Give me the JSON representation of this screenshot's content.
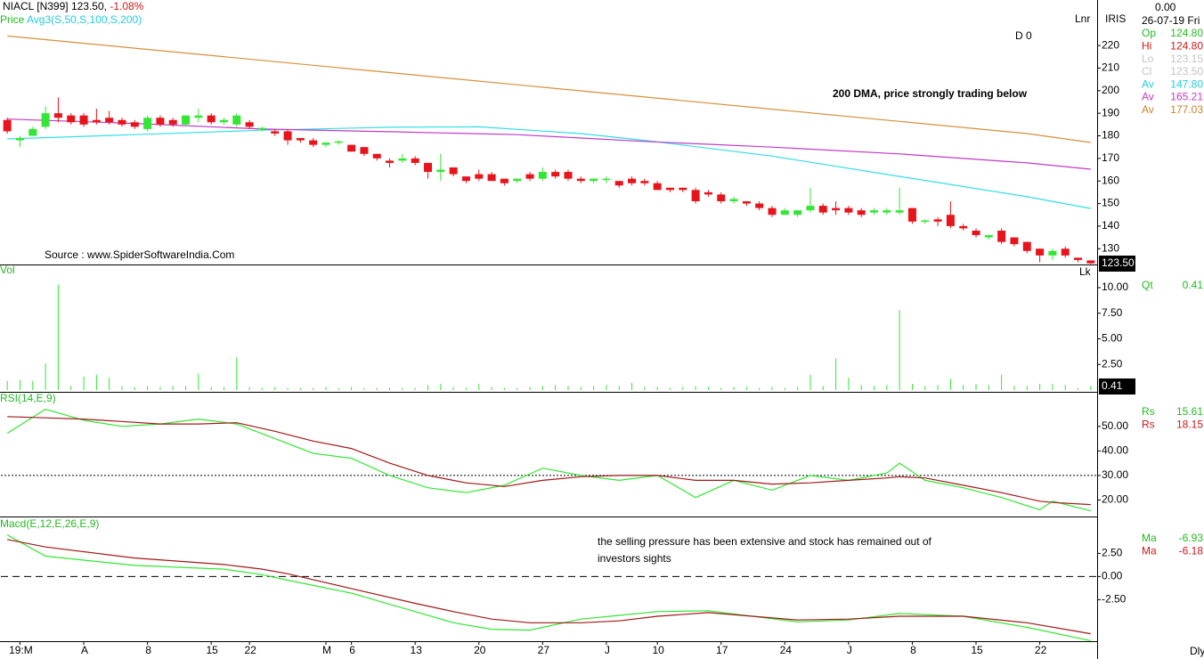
{
  "chart_data": [
    {
      "type": "candlestick",
      "title": "NIACL [N399]",
      "last": "123.50,",
      "change": "-1.08%",
      "indicator": "Price",
      "indicator_params": "Avg3(S,50,S,100,S,200)",
      "up_color": "#33e633",
      "down_color": "#e8141c",
      "open": [
        187,
        178,
        180,
        184,
        190,
        189,
        189,
        187,
        188,
        187,
        186,
        183,
        188,
        187,
        185,
        188,
        189,
        186,
        185,
        186,
        183,
        182,
        182,
        179,
        178,
        176,
        177,
        176,
        175,
        172,
        169,
        169,
        170,
        168,
        164,
        166,
        162,
        163,
        163,
        161,
        160,
        163,
        161,
        164,
        164,
        161,
        160,
        160.5,
        160,
        161,
        160,
        159,
        157,
        157,
        156,
        155,
        154,
        151,
        151,
        150,
        148,
        145,
        145,
        147,
        149,
        148,
        148,
        147,
        146,
        146,
        146,
        148,
        142,
        143,
        145,
        140,
        138,
        135,
        138,
        135,
        133,
        130,
        127,
        130,
        126,
        124.8
      ],
      "high": [
        188,
        180,
        184,
        193,
        197,
        190,
        190,
        192,
        191,
        188,
        187,
        189,
        189,
        188,
        189,
        192,
        190,
        188,
        190,
        187,
        184,
        183,
        183,
        179,
        179,
        177,
        178,
        176,
        175,
        172,
        170,
        172,
        171,
        168,
        172,
        166,
        162,
        165,
        164,
        161,
        161,
        164,
        166,
        165,
        165,
        162,
        161,
        162,
        160,
        162,
        161,
        160,
        157,
        157,
        157,
        156,
        155,
        153,
        151,
        151,
        149,
        148,
        147,
        157,
        150,
        151,
        149,
        148,
        148,
        148,
        157,
        148,
        143,
        144,
        151,
        141,
        139,
        136,
        139,
        135,
        133,
        130,
        130,
        131,
        126,
        124.8
      ],
      "low": [
        181,
        175,
        180,
        183,
        186,
        185,
        184,
        185,
        185,
        184,
        183,
        182,
        184,
        184,
        184,
        186,
        185,
        185,
        184,
        183,
        182,
        180,
        176,
        177,
        175,
        175,
        176,
        173,
        171,
        169,
        166,
        168,
        167,
        161,
        160,
        162,
        159,
        160,
        160,
        158,
        159,
        160,
        160,
        161,
        160,
        159,
        159,
        159,
        157,
        158,
        158,
        156,
        155,
        155,
        150,
        153,
        150,
        150,
        149,
        147,
        144,
        145,
        144,
        146,
        145,
        145,
        145,
        144,
        145,
        145,
        145,
        141,
        141,
        140,
        139,
        138,
        135,
        134,
        132,
        131,
        128,
        124,
        125,
        126,
        124,
        123.15
      ],
      "close": [
        182,
        179,
        183,
        190,
        188,
        186,
        185,
        186,
        186,
        185,
        184,
        188,
        185,
        185,
        189,
        189,
        186,
        187,
        189,
        184,
        183.5,
        181,
        178,
        178,
        176,
        177,
        177.5,
        173,
        172,
        170,
        168,
        170,
        168,
        164,
        165,
        163,
        160,
        161,
        160,
        159,
        161,
        161,
        164,
        162,
        161,
        160,
        161,
        161,
        158,
        159,
        159,
        156,
        156,
        156,
        151,
        154,
        151,
        152,
        150,
        148,
        145,
        147,
        147,
        149,
        146,
        147,
        146,
        145,
        147,
        147,
        147,
        142,
        142.5,
        142,
        140,
        139,
        136,
        136,
        133,
        132,
        129,
        127,
        129,
        127,
        125,
        123.5
      ],
      "series": [
        {
          "color": "#33dde8",
          "x": [
            0,
            10,
            20,
            30,
            37,
            45,
            50,
            60,
            70,
            80,
            85
          ],
          "values": [
            178.6,
            180.5,
            182.5,
            183.8,
            184,
            181,
            178,
            171,
            162,
            153,
            147.8
          ]
        },
        {
          "color": "#c03ac8",
          "x": [
            0,
            10,
            20,
            30,
            40,
            45,
            50,
            60,
            70,
            80,
            85
          ],
          "values": [
            187.4,
            185.5,
            183,
            181.8,
            180.5,
            179,
            177.5,
            175,
            172,
            168,
            165.21
          ]
        },
        {
          "color": "#d4903a",
          "x": [
            0,
            10,
            20,
            30,
            40,
            50,
            60,
            70,
            80,
            85
          ],
          "values": [
            224.2,
            218.8,
            213.4,
            208,
            202.6,
            197.2,
            191.8,
            186.4,
            181,
            177.03
          ]
        }
      ],
      "ylim": [
        123,
        237
      ],
      "yticks": [
        130,
        140,
        150,
        160,
        170,
        180,
        190,
        200,
        210,
        220
      ],
      "annotation": "200 DMA, price strongly trading below",
      "source": "Source : www.SpiderSoftwareIndia.Com",
      "corner_note": "D 0",
      "scale_note": "Lnr",
      "last_label": "123.50"
    },
    {
      "type": "bar",
      "title": "Vol",
      "color": "#33e633",
      "values": [
        0.9,
        1.0,
        0.9,
        2.6,
        10.3,
        0.4,
        1.3,
        1.5,
        1.2,
        0.4,
        0.3,
        0.4,
        0.3,
        0.4,
        0.4,
        1.6,
        0.3,
        0.3,
        3.2,
        0.3,
        0.2,
        0.3,
        0.2,
        0.2,
        0.2,
        0.3,
        0.2,
        0.3,
        0.2,
        0.2,
        0.2,
        0.2,
        0.2,
        0.5,
        0.6,
        0.3,
        0.2,
        0.6,
        0.3,
        0.2,
        0.2,
        0.3,
        0.4,
        0.5,
        0.4,
        0.3,
        0.4,
        0.5,
        0.4,
        0.7,
        0.3,
        0.3,
        0.2,
        0.3,
        0.4,
        0.3,
        0.2,
        0.3,
        0.3,
        0.2,
        0.3,
        0.2,
        0.3,
        1.5,
        0.4,
        3.1,
        1.2,
        0.5,
        0.4,
        0.5,
        7.8,
        0.6,
        0.4,
        0.5,
        1.1,
        0.5,
        0.6,
        0.5,
        1.5,
        0.4,
        0.4,
        0.6,
        0.6,
        0.5,
        0.2,
        0.41
      ],
      "ylim": [
        0,
        12
      ],
      "yticks": [
        {
          "value": 2.5,
          "label": "2.50"
        },
        {
          "value": 5,
          "label": "5.00"
        },
        {
          "value": 7.5,
          "label": "7.50"
        },
        {
          "value": 10,
          "label": "10.00"
        }
      ],
      "scale_note": "Lk",
      "last_label": "0.41"
    },
    {
      "type": "line",
      "title": "RSI(14,E,9)",
      "x": [
        0,
        3,
        6,
        9,
        12,
        15,
        18,
        21,
        24,
        27,
        30,
        33,
        36,
        39,
        42,
        45,
        48,
        51,
        54,
        57,
        60,
        63,
        66,
        69,
        70,
        72,
        75,
        78,
        81,
        82,
        85
      ],
      "series": [
        {
          "color": "#33e633",
          "values": [
            47.2,
            57,
            52.5,
            50,
            51,
            53,
            51,
            45,
            39,
            37,
            30,
            25,
            23,
            26,
            33,
            30,
            28,
            30,
            21,
            28,
            24,
            30,
            28,
            31,
            35,
            28,
            25,
            21,
            16,
            19.5,
            15.61
          ]
        },
        {
          "color": "#a01818",
          "values": [
            54,
            53.5,
            53,
            52,
            51,
            51,
            51.5,
            48,
            44,
            41,
            35,
            30,
            27,
            25.5,
            28,
            29.5,
            30,
            30,
            28,
            28,
            26.5,
            27,
            28,
            29,
            29.5,
            29,
            26,
            23,
            19.5,
            19,
            18.15
          ]
        }
      ],
      "hline": 30,
      "hline_style": "dotted",
      "ylim": [
        14,
        63
      ],
      "yticks": [
        {
          "value": 20,
          "label": "20.00"
        },
        {
          "value": 30,
          "label": "30.00"
        },
        {
          "value": 40,
          "label": "40.00"
        },
        {
          "value": 50,
          "label": "50.00"
        }
      ]
    },
    {
      "type": "line",
      "title": "Macd(E,12,E,26,E,9)",
      "x": [
        0,
        3,
        10,
        17,
        20,
        22,
        27,
        32,
        35,
        38,
        41,
        45,
        48,
        51,
        55,
        62,
        66,
        70,
        75,
        80,
        85
      ],
      "series": [
        {
          "color": "#33e633",
          "values": [
            4.5,
            2.2,
            1.2,
            0.8,
            0.2,
            -0.4,
            -1.8,
            -3.8,
            -5,
            -5.7,
            -5.8,
            -4.6,
            -4.2,
            -3.8,
            -3.7,
            -4.9,
            -4.7,
            -4.0,
            -4.3,
            -5.5,
            -6.93
          ]
        },
        {
          "color": "#a01818",
          "values": [
            4.0,
            3.2,
            2.0,
            1.3,
            0.8,
            0.3,
            -1.3,
            -2.9,
            -3.8,
            -4.6,
            -5.0,
            -5.0,
            -4.8,
            -4.3,
            -3.9,
            -4.7,
            -4.6,
            -4.3,
            -4.3,
            -5.0,
            -6.18
          ]
        }
      ],
      "hline": 0,
      "hline_style": "dashed",
      "ylim": [
        -6.8,
        6.2
      ],
      "yticks": [
        {
          "value": -2.5,
          "label": "-2.50"
        },
        {
          "value": 0,
          "label": "0.00"
        },
        {
          "value": 2.5,
          "label": "2.50"
        }
      ],
      "annotation": [
        "the selling pressure has been extensive and stock has remained out of",
        "investors sights"
      ],
      "xticks": [
        {
          "value": 1,
          "label": "19:M"
        },
        {
          "value": 6,
          "label": "A"
        },
        {
          "value": 11,
          "label": "8"
        },
        {
          "value": 16,
          "label": "15"
        },
        {
          "value": 19,
          "label": "22"
        },
        {
          "value": 25,
          "label": "M"
        },
        {
          "value": 27,
          "label": "6"
        },
        {
          "value": 32,
          "label": "13"
        },
        {
          "value": 37,
          "label": "20"
        },
        {
          "value": 42,
          "label": "27"
        },
        {
          "value": 47,
          "label": "J"
        },
        {
          "value": 51,
          "label": "10"
        },
        {
          "value": 56,
          "label": "17"
        },
        {
          "value": 61,
          "label": "24"
        },
        {
          "value": 66,
          "label": "J"
        },
        {
          "value": 71,
          "label": "8"
        },
        {
          "value": 76,
          "label": "15"
        },
        {
          "value": 81,
          "label": "22"
        }
      ]
    }
  ],
  "info": {
    "top_value": "0.00",
    "source_name": "IRIS",
    "date": "26-07-19 Fri",
    "period": "Dly",
    "price_rows": [
      {
        "label": "Op",
        "value": "124.80",
        "color": "#22bb22"
      },
      {
        "label": "Hi",
        "value": "124.80",
        "color": "#d01818"
      },
      {
        "label": "Lo",
        "value": "123.15",
        "color": "#c4c4c4"
      },
      {
        "label": "Cl",
        "value": "123.50",
        "color": "#c4c4c4"
      },
      {
        "label": "Av",
        "value": "147.80",
        "color": "#22ccdd"
      },
      {
        "label": "Av",
        "value": "165.21",
        "color": "#c03ac8"
      },
      {
        "label": "Av",
        "value": "177.03",
        "color": "#c8822a"
      }
    ],
    "vol_rows": [
      {
        "label": "Qt",
        "value": "0.41",
        "color": "#22bb22"
      }
    ],
    "rsi_rows": [
      {
        "label": "Rs",
        "value": "15.61",
        "color": "#22bb22"
      },
      {
        "label": "Rs",
        "value": "18.15",
        "color": "#d01818"
      }
    ],
    "macd_rows": [
      {
        "label": "Ma",
        "value": "-6.93",
        "color": "#22bb22"
      },
      {
        "label": "Ma",
        "value": "-6.18",
        "color": "#d01818"
      }
    ]
  }
}
